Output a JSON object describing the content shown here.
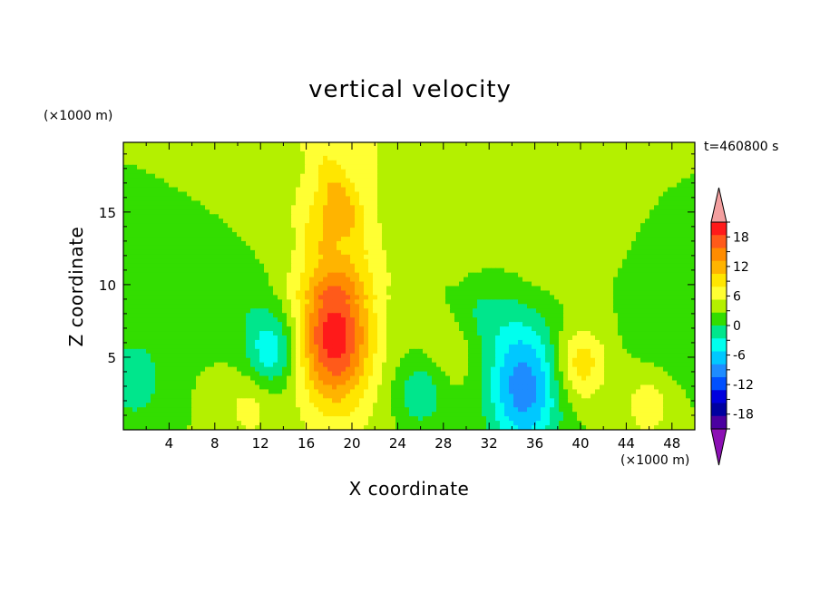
{
  "title": "vertical velocity",
  "z_units": "(×1000 m)",
  "x_units": "(×1000 m)",
  "xlabel": "X coordinate",
  "ylabel": "Z coordinate",
  "timestamp": "t=460800 s",
  "chart_data": {
    "type": "heatmap",
    "title": "vertical velocity",
    "xlabel": "X coordinate",
    "ylabel": "Z coordinate",
    "x_unit_note": "(×1000 m)",
    "z_unit_note": "(×1000 m)",
    "annotation": "t=460800 s",
    "xlim": [
      0,
      50
    ],
    "ylim": [
      0,
      19.8
    ],
    "x_ticks": [
      4,
      8,
      12,
      16,
      20,
      24,
      28,
      32,
      36,
      40,
      44,
      48
    ],
    "y_ticks": [
      5,
      10,
      15
    ],
    "colorbar": {
      "tick_labels": [
        "18",
        "12",
        "6",
        "0",
        "-6",
        "-12",
        "-18"
      ],
      "tick_values": [
        18,
        12,
        6,
        0,
        -6,
        -12,
        -18
      ],
      "levels": [
        21,
        18,
        15,
        12,
        9,
        6,
        3,
        0,
        -3,
        -6,
        -9,
        -12,
        -15,
        -18,
        -21
      ],
      "colors": [
        "#ff1a1a",
        "#ff5a1a",
        "#ff8c00",
        "#ffb400",
        "#ffe600",
        "#ffff33",
        "#b4f000",
        "#33dd00",
        "#00e68c",
        "#00ffee",
        "#00c8ff",
        "#1e8cff",
        "#0050ff",
        "#0000dd",
        "#0000a0",
        "#4b00a0"
      ],
      "overflow_top": "#f4a0a0",
      "overflow_bottom": "#8c10b4",
      "extend": "both"
    },
    "features": [
      {
        "x": 18.5,
        "z": 6.5,
        "peak": 18
      },
      {
        "x": 18.5,
        "z": 15,
        "peak": 6
      },
      {
        "x": 13,
        "z": 5.5,
        "peak": -9
      },
      {
        "x": 35,
        "z": 3,
        "peak": -14
      },
      {
        "x": 40,
        "z": 4.5,
        "peak": 8
      },
      {
        "x": 46,
        "z": 1.8,
        "peak": 5
      },
      {
        "x": 1,
        "z": 3.5,
        "peak": -6
      },
      {
        "x": 26,
        "z": 2.5,
        "peak": -6
      },
      {
        "x": 11,
        "z": 1.5,
        "peak": 4
      },
      {
        "x": 28.5,
        "z": 6,
        "peak": 3
      }
    ]
  }
}
